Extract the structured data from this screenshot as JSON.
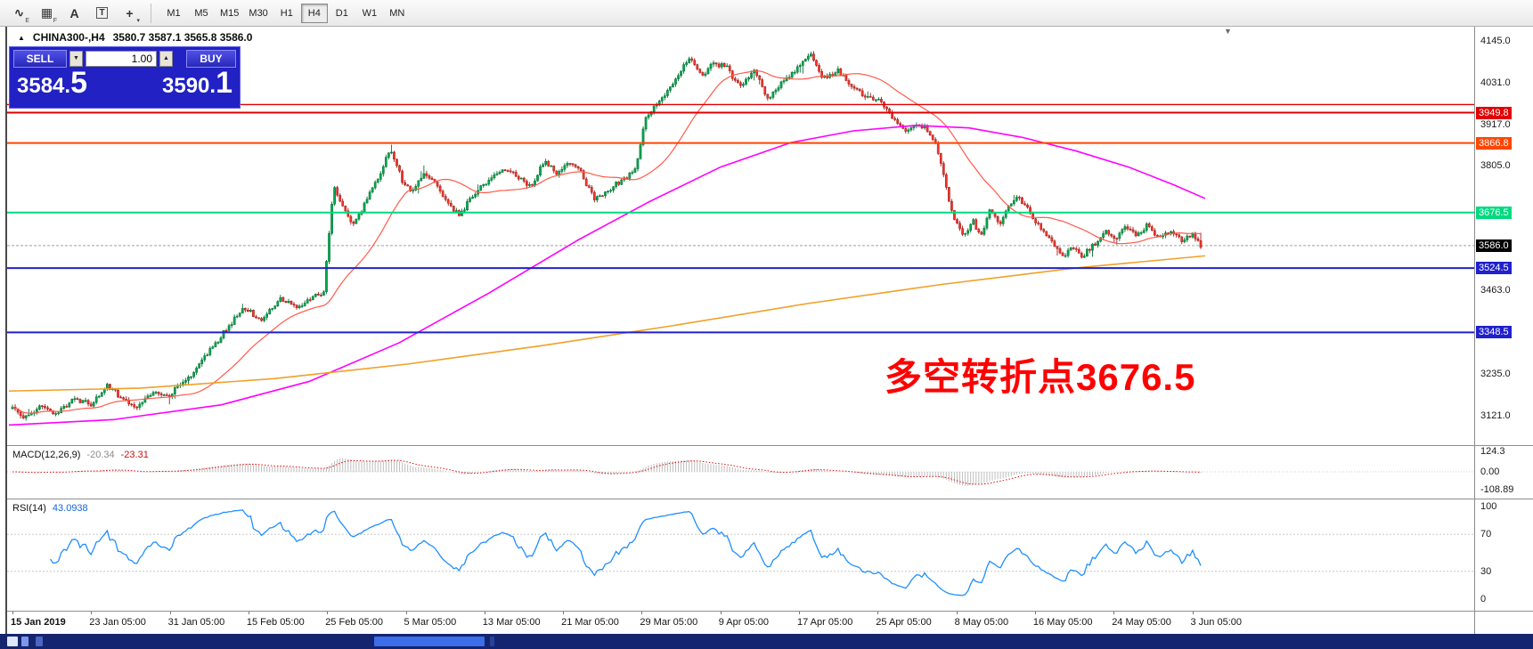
{
  "toolbar": {
    "icons": [
      {
        "name": "chart-tool-e-icon",
        "glyph": "∿",
        "badge": "E"
      },
      {
        "name": "grid-tool-f-icon",
        "glyph": "▦",
        "badge": "F"
      },
      {
        "name": "text-label-icon",
        "glyph": "A",
        "badge": ""
      },
      {
        "name": "text-box-icon",
        "glyph": "T",
        "badge": "",
        "boxed": true
      },
      {
        "name": "crosshair-tool-icon",
        "glyph": "+",
        "badge": "▾"
      }
    ],
    "timeframes": [
      {
        "label": "M1",
        "active": false
      },
      {
        "label": "M5",
        "active": false
      },
      {
        "label": "M15",
        "active": false
      },
      {
        "label": "M30",
        "active": false
      },
      {
        "label": "H1",
        "active": false
      },
      {
        "label": "H4",
        "active": true
      },
      {
        "label": "D1",
        "active": false
      },
      {
        "label": "W1",
        "active": false
      },
      {
        "label": "MN",
        "active": false
      }
    ]
  },
  "header": {
    "collapse_glyph": "▲",
    "symbol_timeframe": "CHINA300-,H4",
    "ohlc": "3580.7 3587.1 3565.8 3586.0"
  },
  "trade_panel": {
    "sell_label": "SELL",
    "buy_label": "BUY",
    "volume": "1.00",
    "spinner_down": "▼",
    "spinner_up": "▲",
    "bid_main": "3584.",
    "bid_pips": "5",
    "ask_main": "3590.",
    "ask_pips": "1"
  },
  "main_chart": {
    "shift_marker_glyph": "▼",
    "y_ticks": [
      {
        "label": "4145.0",
        "price": 4145.0
      },
      {
        "label": "4031.0",
        "price": 4031.0
      },
      {
        "label": "3917.0",
        "price": 3917.0
      },
      {
        "label": "3805.0",
        "price": 3805.0
      },
      {
        "label": "3463.0",
        "price": 3463.0
      },
      {
        "label": "3235.0",
        "price": 3235.0
      },
      {
        "label": "3121.0",
        "price": 3121.0
      }
    ],
    "levels": [
      {
        "price": 3972.0,
        "color": "#e00000",
        "label": null,
        "width": 1.4
      },
      {
        "price": 3949.8,
        "color": "#e00000",
        "label": "3949.8",
        "width": 2
      },
      {
        "price": 3866.8,
        "color": "#ff4500",
        "label": "3866.8",
        "width": 2
      },
      {
        "price": 3676.5,
        "color": "#00da7f",
        "label": "3676.5",
        "width": 2
      },
      {
        "price": 3524.5,
        "color": "#2020cc",
        "label": "3524.5",
        "width": 2
      },
      {
        "price": 3348.5,
        "color": "#2020cc",
        "label": "3348.5",
        "width": 2
      }
    ],
    "current_price": {
      "value": 3586.0,
      "label": "3586.0",
      "tag_bg": "#000000"
    },
    "annotation": {
      "text": "多空转折点3676.5",
      "color": "#ff0000"
    }
  },
  "chart_data": {
    "type": "candlestick",
    "symbol": "CHINA300-",
    "timeframe": "H4",
    "ohlc_display": {
      "open": 3580.7,
      "high": 3587.1,
      "low": 3565.8,
      "close": 3586.0
    },
    "y_range": [
      3040,
      4185
    ],
    "num_candles": 440,
    "horizontal_levels": [
      3972.0,
      3949.8,
      3866.8,
      3676.5,
      3524.5,
      3348.5
    ],
    "current_price": 3586.0,
    "price_path": [
      [
        0.0,
        3140
      ],
      [
        0.012,
        3112
      ],
      [
        0.025,
        3150
      ],
      [
        0.038,
        3128
      ],
      [
        0.052,
        3168
      ],
      [
        0.066,
        3150
      ],
      [
        0.08,
        3205
      ],
      [
        0.092,
        3165
      ],
      [
        0.105,
        3145
      ],
      [
        0.118,
        3185
      ],
      [
        0.132,
        3175
      ],
      [
        0.148,
        3225
      ],
      [
        0.162,
        3280
      ],
      [
        0.178,
        3350
      ],
      [
        0.195,
        3415
      ],
      [
        0.21,
        3380
      ],
      [
        0.225,
        3440
      ],
      [
        0.24,
        3420
      ],
      [
        0.252,
        3442
      ],
      [
        0.262,
        3458
      ],
      [
        0.27,
        3745
      ],
      [
        0.278,
        3692
      ],
      [
        0.286,
        3640
      ],
      [
        0.296,
        3700
      ],
      [
        0.308,
        3775
      ],
      [
        0.318,
        3850
      ],
      [
        0.328,
        3765
      ],
      [
        0.336,
        3735
      ],
      [
        0.346,
        3785
      ],
      [
        0.356,
        3755
      ],
      [
        0.366,
        3705
      ],
      [
        0.376,
        3668
      ],
      [
        0.388,
        3725
      ],
      [
        0.4,
        3765
      ],
      [
        0.412,
        3800
      ],
      [
        0.424,
        3775
      ],
      [
        0.436,
        3748
      ],
      [
        0.448,
        3818
      ],
      [
        0.458,
        3782
      ],
      [
        0.468,
        3815
      ],
      [
        0.478,
        3790
      ],
      [
        0.49,
        3710
      ],
      [
        0.502,
        3738
      ],
      [
        0.515,
        3772
      ],
      [
        0.525,
        3800
      ],
      [
        0.532,
        3930
      ],
      [
        0.54,
        3968
      ],
      [
        0.55,
        4000
      ],
      [
        0.56,
        4048
      ],
      [
        0.57,
        4100
      ],
      [
        0.58,
        4052
      ],
      [
        0.59,
        4082
      ],
      [
        0.6,
        4078
      ],
      [
        0.612,
        4020
      ],
      [
        0.624,
        4062
      ],
      [
        0.636,
        3988
      ],
      [
        0.648,
        4035
      ],
      [
        0.66,
        4070
      ],
      [
        0.672,
        4110
      ],
      [
        0.682,
        4042
      ],
      [
        0.695,
        4065
      ],
      [
        0.708,
        4015
      ],
      [
        0.72,
        3992
      ],
      [
        0.73,
        3985
      ],
      [
        0.74,
        3942
      ],
      [
        0.752,
        3895
      ],
      [
        0.762,
        3922
      ],
      [
        0.77,
        3905
      ],
      [
        0.778,
        3862
      ],
      [
        0.786,
        3742
      ],
      [
        0.793,
        3652
      ],
      [
        0.8,
        3615
      ],
      [
        0.808,
        3655
      ],
      [
        0.815,
        3610
      ],
      [
        0.822,
        3680
      ],
      [
        0.83,
        3645
      ],
      [
        0.838,
        3695
      ],
      [
        0.846,
        3722
      ],
      [
        0.854,
        3685
      ],
      [
        0.861,
        3650
      ],
      [
        0.868,
        3625
      ],
      [
        0.876,
        3592
      ],
      [
        0.884,
        3558
      ],
      [
        0.892,
        3585
      ],
      [
        0.9,
        3555
      ],
      [
        0.91,
        3590
      ],
      [
        0.92,
        3625
      ],
      [
        0.928,
        3600
      ],
      [
        0.936,
        3640
      ],
      [
        0.946,
        3612
      ],
      [
        0.955,
        3642
      ],
      [
        0.964,
        3606
      ],
      [
        0.974,
        3630
      ],
      [
        0.984,
        3602
      ],
      [
        0.992,
        3618
      ],
      [
        1.0,
        3586
      ]
    ],
    "moving_averages": [
      {
        "name": "fast",
        "color": "#ff5a4a",
        "type": "sma",
        "period": 30
      },
      {
        "name": "medium",
        "color": "#ff00ff",
        "anchors": [
          [
            2,
            3095
          ],
          [
            120,
            3110
          ],
          [
            240,
            3150
          ],
          [
            340,
            3215
          ],
          [
            440,
            3320
          ],
          [
            540,
            3455
          ],
          [
            640,
            3600
          ],
          [
            720,
            3705
          ],
          [
            800,
            3800
          ],
          [
            880,
            3868
          ],
          [
            950,
            3900
          ],
          [
            1020,
            3915
          ],
          [
            1080,
            3908
          ],
          [
            1140,
            3882
          ],
          [
            1200,
            3845
          ],
          [
            1260,
            3800
          ],
          [
            1310,
            3752
          ],
          [
            1345,
            3715
          ]
        ]
      },
      {
        "name": "slow",
        "color": "#f0a028",
        "anchors": [
          [
            2,
            3188
          ],
          [
            150,
            3196
          ],
          [
            300,
            3222
          ],
          [
            450,
            3262
          ],
          [
            600,
            3312
          ],
          [
            750,
            3368
          ],
          [
            900,
            3428
          ],
          [
            1050,
            3480
          ],
          [
            1200,
            3525
          ],
          [
            1345,
            3558
          ]
        ]
      }
    ]
  },
  "macd": {
    "label": "MACD(12,26,9)",
    "value_main": "-20.34",
    "value_signal": "-23.31",
    "axis": [
      "124.3",
      "0.00",
      "-108.89"
    ],
    "params": {
      "fast": 12,
      "slow": 26,
      "signal": 9
    }
  },
  "rsi": {
    "label": "RSI(14)",
    "value": "43.0938",
    "axis": [
      "100",
      "70",
      "30",
      "0"
    ],
    "levels": [
      70,
      30
    ]
  },
  "x_axis": {
    "dates": [
      "15 Jan 2019",
      "23 Jan 05:00",
      "31 Jan 05:00",
      "15 Feb 05:00",
      "25 Feb 05:00",
      "5 Mar 05:00",
      "13 Mar 05:00",
      "21 Mar 05:00",
      "29 Mar 05:00",
      "9 Apr 05:00",
      "17 Apr 05:00",
      "25 Apr 05:00",
      "8 May 05:00",
      "16 May 05:00",
      "24 May 05:00",
      "3 Jun 05:00"
    ]
  },
  "taskbar": {
    "items": [
      {
        "x": 8,
        "w": 12,
        "color": "#dfe6ff"
      },
      {
        "x": 24,
        "w": 8,
        "color": "#7f97e8"
      },
      {
        "x": 40,
        "w": 8,
        "color": "#4a66c0"
      },
      {
        "x": 420,
        "w": 124,
        "color": "#3b6ee8"
      },
      {
        "x": 550,
        "w": 5,
        "color": "#26439a"
      }
    ]
  },
  "colors": {
    "candle_up": "#00a650",
    "candle_up_border": "#00702f",
    "candle_down": "#f4352c",
    "candle_down_border": "#a11c16",
    "ma_fast": "#ff5a4a",
    "ma_medium": "#ff00ff",
    "ma_slow": "#f0a028",
    "current_line": "#a0a0a0",
    "macd_hist": "#bdbdbd",
    "macd_signal": "#e01010",
    "rsi_line": "#1f8fff",
    "panel_blue": "#2121c4"
  }
}
